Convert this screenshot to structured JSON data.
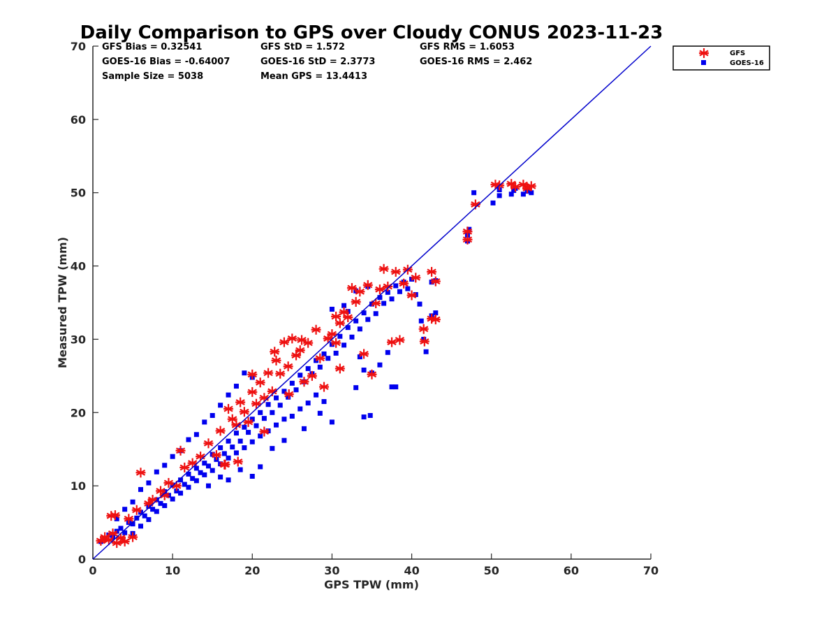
{
  "chart_data": {
    "type": "scatter",
    "title": "Daily Comparison to GPS over Cloudy CONUS 2023-11-23",
    "xlabel": "GPS TPW (mm)",
    "ylabel": "Measured TPW (mm)",
    "xlim": [
      0,
      70
    ],
    "ylim": [
      0,
      70
    ],
    "xticks": [
      0,
      10,
      20,
      30,
      40,
      50,
      60,
      70
    ],
    "yticks": [
      0,
      10,
      20,
      30,
      40,
      50,
      60,
      70
    ],
    "grid": false,
    "legend_position": "outside-top-right",
    "reference_line": {
      "x": [
        0,
        70
      ],
      "y": [
        0,
        70
      ],
      "color": "#0000cc"
    },
    "stats": [
      [
        "GFS Bias = 0.32541",
        "GFS StD = 1.572",
        "GFS RMS = 1.6053"
      ],
      [
        "GOES-16 Bias = -0.64007",
        "GOES-16 StD = 2.3773",
        "GOES-16 RMS = 2.462"
      ],
      [
        "Sample Size = 5038",
        "Mean GPS = 13.4413",
        ""
      ]
    ],
    "series": [
      {
        "name": "GOES-16",
        "marker": "square",
        "color": "#0000ee",
        "points": [
          [
            1.0,
            2.4
          ],
          [
            1.5,
            2.8
          ],
          [
            2.0,
            3.3
          ],
          [
            2.5,
            3.0
          ],
          [
            3.0,
            3.8
          ],
          [
            3.5,
            4.2
          ],
          [
            4.0,
            3.6
          ],
          [
            4.5,
            5.0
          ],
          [
            5.0,
            4.8
          ],
          [
            5.5,
            5.6
          ],
          [
            6.0,
            6.4
          ],
          [
            6.5,
            5.9
          ],
          [
            7.0,
            7.2
          ],
          [
            7.5,
            6.8
          ],
          [
            8.0,
            8.1
          ],
          [
            8.5,
            7.6
          ],
          [
            9.0,
            9.2
          ],
          [
            9.5,
            8.7
          ],
          [
            10.0,
            10.1
          ],
          [
            10.5,
            9.3
          ],
          [
            11.0,
            10.8
          ],
          [
            11.5,
            10.2
          ],
          [
            12.0,
            11.6
          ],
          [
            12.5,
            11.0
          ],
          [
            13.0,
            12.4
          ],
          [
            13.5,
            11.8
          ],
          [
            14.0,
            13.1
          ],
          [
            14.5,
            12.7
          ],
          [
            15.0,
            14.3
          ],
          [
            15.5,
            13.6
          ],
          [
            16.0,
            15.2
          ],
          [
            16.5,
            14.4
          ],
          [
            17.0,
            16.1
          ],
          [
            17.5,
            15.3
          ],
          [
            18.0,
            17.2
          ],
          [
            18.5,
            16.1
          ],
          [
            19.0,
            18.0
          ],
          [
            19.5,
            17.3
          ],
          [
            20.0,
            19.1
          ],
          [
            20.5,
            18.2
          ],
          [
            21.0,
            20.0
          ],
          [
            21.5,
            19.2
          ],
          [
            22.0,
            21.1
          ],
          [
            22.5,
            20.0
          ],
          [
            23.0,
            22.0
          ],
          [
            23.5,
            21.0
          ],
          [
            24.0,
            22.9
          ],
          [
            24.5,
            22.1
          ],
          [
            25.0,
            24.0
          ],
          [
            25.5,
            23.1
          ],
          [
            5.0,
            3.5
          ],
          [
            6.0,
            4.5
          ],
          [
            7.0,
            5.4
          ],
          [
            8.0,
            6.5
          ],
          [
            9.0,
            7.3
          ],
          [
            10.0,
            8.2
          ],
          [
            11.0,
            9.0
          ],
          [
            12.0,
            9.8
          ],
          [
            13.0,
            10.7
          ],
          [
            14.0,
            11.5
          ],
          [
            15.0,
            12.1
          ],
          [
            16.0,
            13.0
          ],
          [
            17.0,
            13.8
          ],
          [
            18.0,
            14.5
          ],
          [
            19.0,
            15.2
          ],
          [
            20.0,
            16.0
          ],
          [
            21.0,
            16.8
          ],
          [
            22.0,
            17.5
          ],
          [
            23.0,
            18.3
          ],
          [
            24.0,
            19.1
          ],
          [
            3.0,
            5.5
          ],
          [
            4.0,
            6.8
          ],
          [
            5.0,
            7.8
          ],
          [
            6.0,
            9.5
          ],
          [
            7.0,
            10.4
          ],
          [
            8.0,
            11.9
          ],
          [
            9.0,
            12.8
          ],
          [
            10.0,
            14.0
          ],
          [
            11.0,
            14.8
          ],
          [
            12.0,
            16.3
          ],
          [
            13.0,
            17.0
          ],
          [
            14.0,
            18.7
          ],
          [
            15.0,
            19.6
          ],
          [
            16.0,
            21.0
          ],
          [
            17.0,
            22.4
          ],
          [
            18.0,
            23.6
          ],
          [
            19.0,
            25.4
          ],
          [
            20.0,
            24.8
          ],
          [
            26.0,
            25.1
          ],
          [
            26.5,
            24.2
          ],
          [
            27.0,
            26.0
          ],
          [
            27.5,
            25.3
          ],
          [
            28.0,
            27.1
          ],
          [
            28.5,
            26.2
          ],
          [
            29.0,
            28.0
          ],
          [
            29.5,
            27.4
          ],
          [
            30.0,
            29.3
          ],
          [
            30.5,
            28.1
          ],
          [
            31.0,
            30.4
          ],
          [
            31.5,
            29.2
          ],
          [
            32.0,
            31.6
          ],
          [
            32.5,
            30.3
          ],
          [
            33.0,
            32.5
          ],
          [
            33.5,
            31.4
          ],
          [
            34.0,
            33.6
          ],
          [
            34.5,
            32.7
          ],
          [
            35.0,
            34.8
          ],
          [
            35.5,
            33.5
          ],
          [
            36.0,
            35.7
          ],
          [
            36.5,
            34.9
          ],
          [
            37.0,
            36.4
          ],
          [
            37.5,
            35.5
          ],
          [
            38.0,
            37.3
          ],
          [
            38.5,
            36.5
          ],
          [
            39.0,
            37.8
          ],
          [
            39.5,
            36.9
          ],
          [
            40.0,
            38.2
          ],
          [
            40.5,
            36.1
          ],
          [
            25.0,
            19.5
          ],
          [
            26.0,
            20.5
          ],
          [
            27.0,
            21.3
          ],
          [
            28.0,
            22.4
          ],
          [
            29.0,
            21.5
          ],
          [
            30.0,
            18.7
          ],
          [
            26.5,
            17.8
          ],
          [
            28.5,
            19.9
          ],
          [
            24.0,
            16.2
          ],
          [
            22.5,
            15.1
          ],
          [
            21.0,
            12.6
          ],
          [
            20.0,
            11.3
          ],
          [
            18.5,
            12.2
          ],
          [
            17.0,
            10.8
          ],
          [
            16.0,
            11.2
          ],
          [
            14.5,
            10.0
          ],
          [
            30.0,
            34.1
          ],
          [
            31.5,
            34.6
          ],
          [
            33.0,
            36.6
          ],
          [
            34.5,
            37.2
          ],
          [
            32.0,
            33.8
          ],
          [
            33.5,
            27.6
          ],
          [
            34.0,
            25.8
          ],
          [
            35.0,
            25.4
          ],
          [
            33.0,
            23.4
          ],
          [
            34.0,
            19.4
          ],
          [
            34.8,
            19.6
          ],
          [
            37.5,
            23.5
          ],
          [
            38.0,
            23.5
          ],
          [
            36.0,
            26.5
          ],
          [
            37.0,
            28.2
          ],
          [
            41.5,
            30.0
          ],
          [
            41.8,
            28.3
          ],
          [
            42.5,
            33.2
          ],
          [
            43.0,
            33.6
          ],
          [
            42.5,
            37.8
          ],
          [
            43.0,
            38.0
          ],
          [
            41.0,
            34.8
          ],
          [
            41.2,
            32.5
          ],
          [
            47.0,
            43.4
          ],
          [
            47.0,
            44.2
          ],
          [
            47.2,
            45.0
          ],
          [
            47.8,
            50.0
          ],
          [
            50.2,
            48.6
          ],
          [
            51.0,
            49.6
          ],
          [
            51.0,
            50.4
          ],
          [
            52.5,
            49.8
          ],
          [
            52.8,
            50.3
          ],
          [
            53.0,
            50.6
          ],
          [
            54.0,
            49.8
          ],
          [
            54.5,
            50.2
          ],
          [
            55.0,
            50.0
          ]
        ]
      },
      {
        "name": "GFS",
        "marker": "asterisk",
        "color": "#ee1111",
        "points": [
          [
            1.0,
            2.5
          ],
          [
            1.5,
            3.0
          ],
          [
            2.0,
            2.6
          ],
          [
            2.5,
            3.5
          ],
          [
            3.0,
            2.2
          ],
          [
            3.5,
            2.9
          ],
          [
            4.0,
            2.4
          ],
          [
            2.3,
            5.9
          ],
          [
            2.8,
            6.0
          ],
          [
            5.0,
            3.0
          ],
          [
            4.5,
            5.5
          ],
          [
            5.5,
            6.7
          ],
          [
            6.0,
            11.8
          ],
          [
            7.0,
            7.6
          ],
          [
            7.5,
            8.1
          ],
          [
            8.5,
            9.3
          ],
          [
            9.0,
            8.7
          ],
          [
            9.5,
            10.4
          ],
          [
            10.5,
            10.0
          ],
          [
            11.0,
            14.8
          ],
          [
            11.5,
            12.5
          ],
          [
            12.5,
            13.1
          ],
          [
            13.5,
            14.0
          ],
          [
            14.5,
            15.8
          ],
          [
            15.5,
            14.2
          ],
          [
            16.0,
            17.5
          ],
          [
            16.5,
            12.9
          ],
          [
            17.0,
            20.5
          ],
          [
            17.5,
            19.1
          ],
          [
            18.0,
            18.3
          ],
          [
            18.5,
            21.4
          ],
          [
            19.0,
            20.1
          ],
          [
            19.5,
            18.7
          ],
          [
            20.0,
            22.8
          ],
          [
            20.5,
            21.2
          ],
          [
            20.0,
            25.2
          ],
          [
            21.0,
            24.1
          ],
          [
            21.5,
            22.0
          ],
          [
            22.0,
            25.4
          ],
          [
            22.5,
            22.9
          ],
          [
            23.0,
            27.1
          ],
          [
            23.5,
            25.3
          ],
          [
            24.0,
            29.6
          ],
          [
            24.5,
            26.3
          ],
          [
            25.0,
            30.1
          ],
          [
            25.5,
            27.8
          ],
          [
            26.0,
            28.5
          ],
          [
            26.5,
            24.2
          ],
          [
            27.0,
            29.5
          ],
          [
            27.5,
            25.0
          ],
          [
            28.0,
            31.3
          ],
          [
            28.5,
            27.4
          ],
          [
            29.0,
            23.5
          ],
          [
            29.5,
            30.1
          ],
          [
            30.0,
            30.7
          ],
          [
            30.5,
            33.1
          ],
          [
            31.0,
            32.2
          ],
          [
            31.5,
            33.7
          ],
          [
            32.0,
            33.0
          ],
          [
            32.5,
            37.0
          ],
          [
            33.0,
            35.1
          ],
          [
            33.5,
            36.5
          ],
          [
            34.0,
            28.0
          ],
          [
            34.5,
            37.4
          ],
          [
            35.0,
            25.2
          ],
          [
            35.5,
            34.9
          ],
          [
            36.0,
            36.8
          ],
          [
            36.5,
            39.6
          ],
          [
            37.0,
            37.2
          ],
          [
            37.5,
            29.6
          ],
          [
            38.0,
            39.2
          ],
          [
            38.5,
            29.9
          ],
          [
            39.0,
            37.6
          ],
          [
            39.5,
            39.5
          ],
          [
            40.0,
            36.0
          ],
          [
            40.5,
            38.4
          ],
          [
            41.5,
            31.4
          ],
          [
            41.6,
            29.7
          ],
          [
            42.5,
            32.8
          ],
          [
            42.5,
            39.2
          ],
          [
            43.0,
            37.9
          ],
          [
            43.0,
            32.7
          ],
          [
            30.5,
            29.5
          ],
          [
            31.0,
            26.0
          ],
          [
            26.2,
            29.9
          ],
          [
            22.8,
            28.3
          ],
          [
            24.6,
            22.5
          ],
          [
            18.2,
            13.3
          ],
          [
            16.6,
            12.9
          ],
          [
            21.5,
            17.4
          ],
          [
            47.0,
            44.7
          ],
          [
            47.0,
            43.6
          ],
          [
            48.0,
            48.4
          ],
          [
            50.5,
            51.1
          ],
          [
            51.0,
            51.0
          ],
          [
            52.5,
            51.2
          ],
          [
            53.0,
            50.8
          ],
          [
            54.0,
            51.1
          ],
          [
            54.5,
            50.6
          ],
          [
            55.0,
            50.9
          ]
        ]
      }
    ]
  }
}
